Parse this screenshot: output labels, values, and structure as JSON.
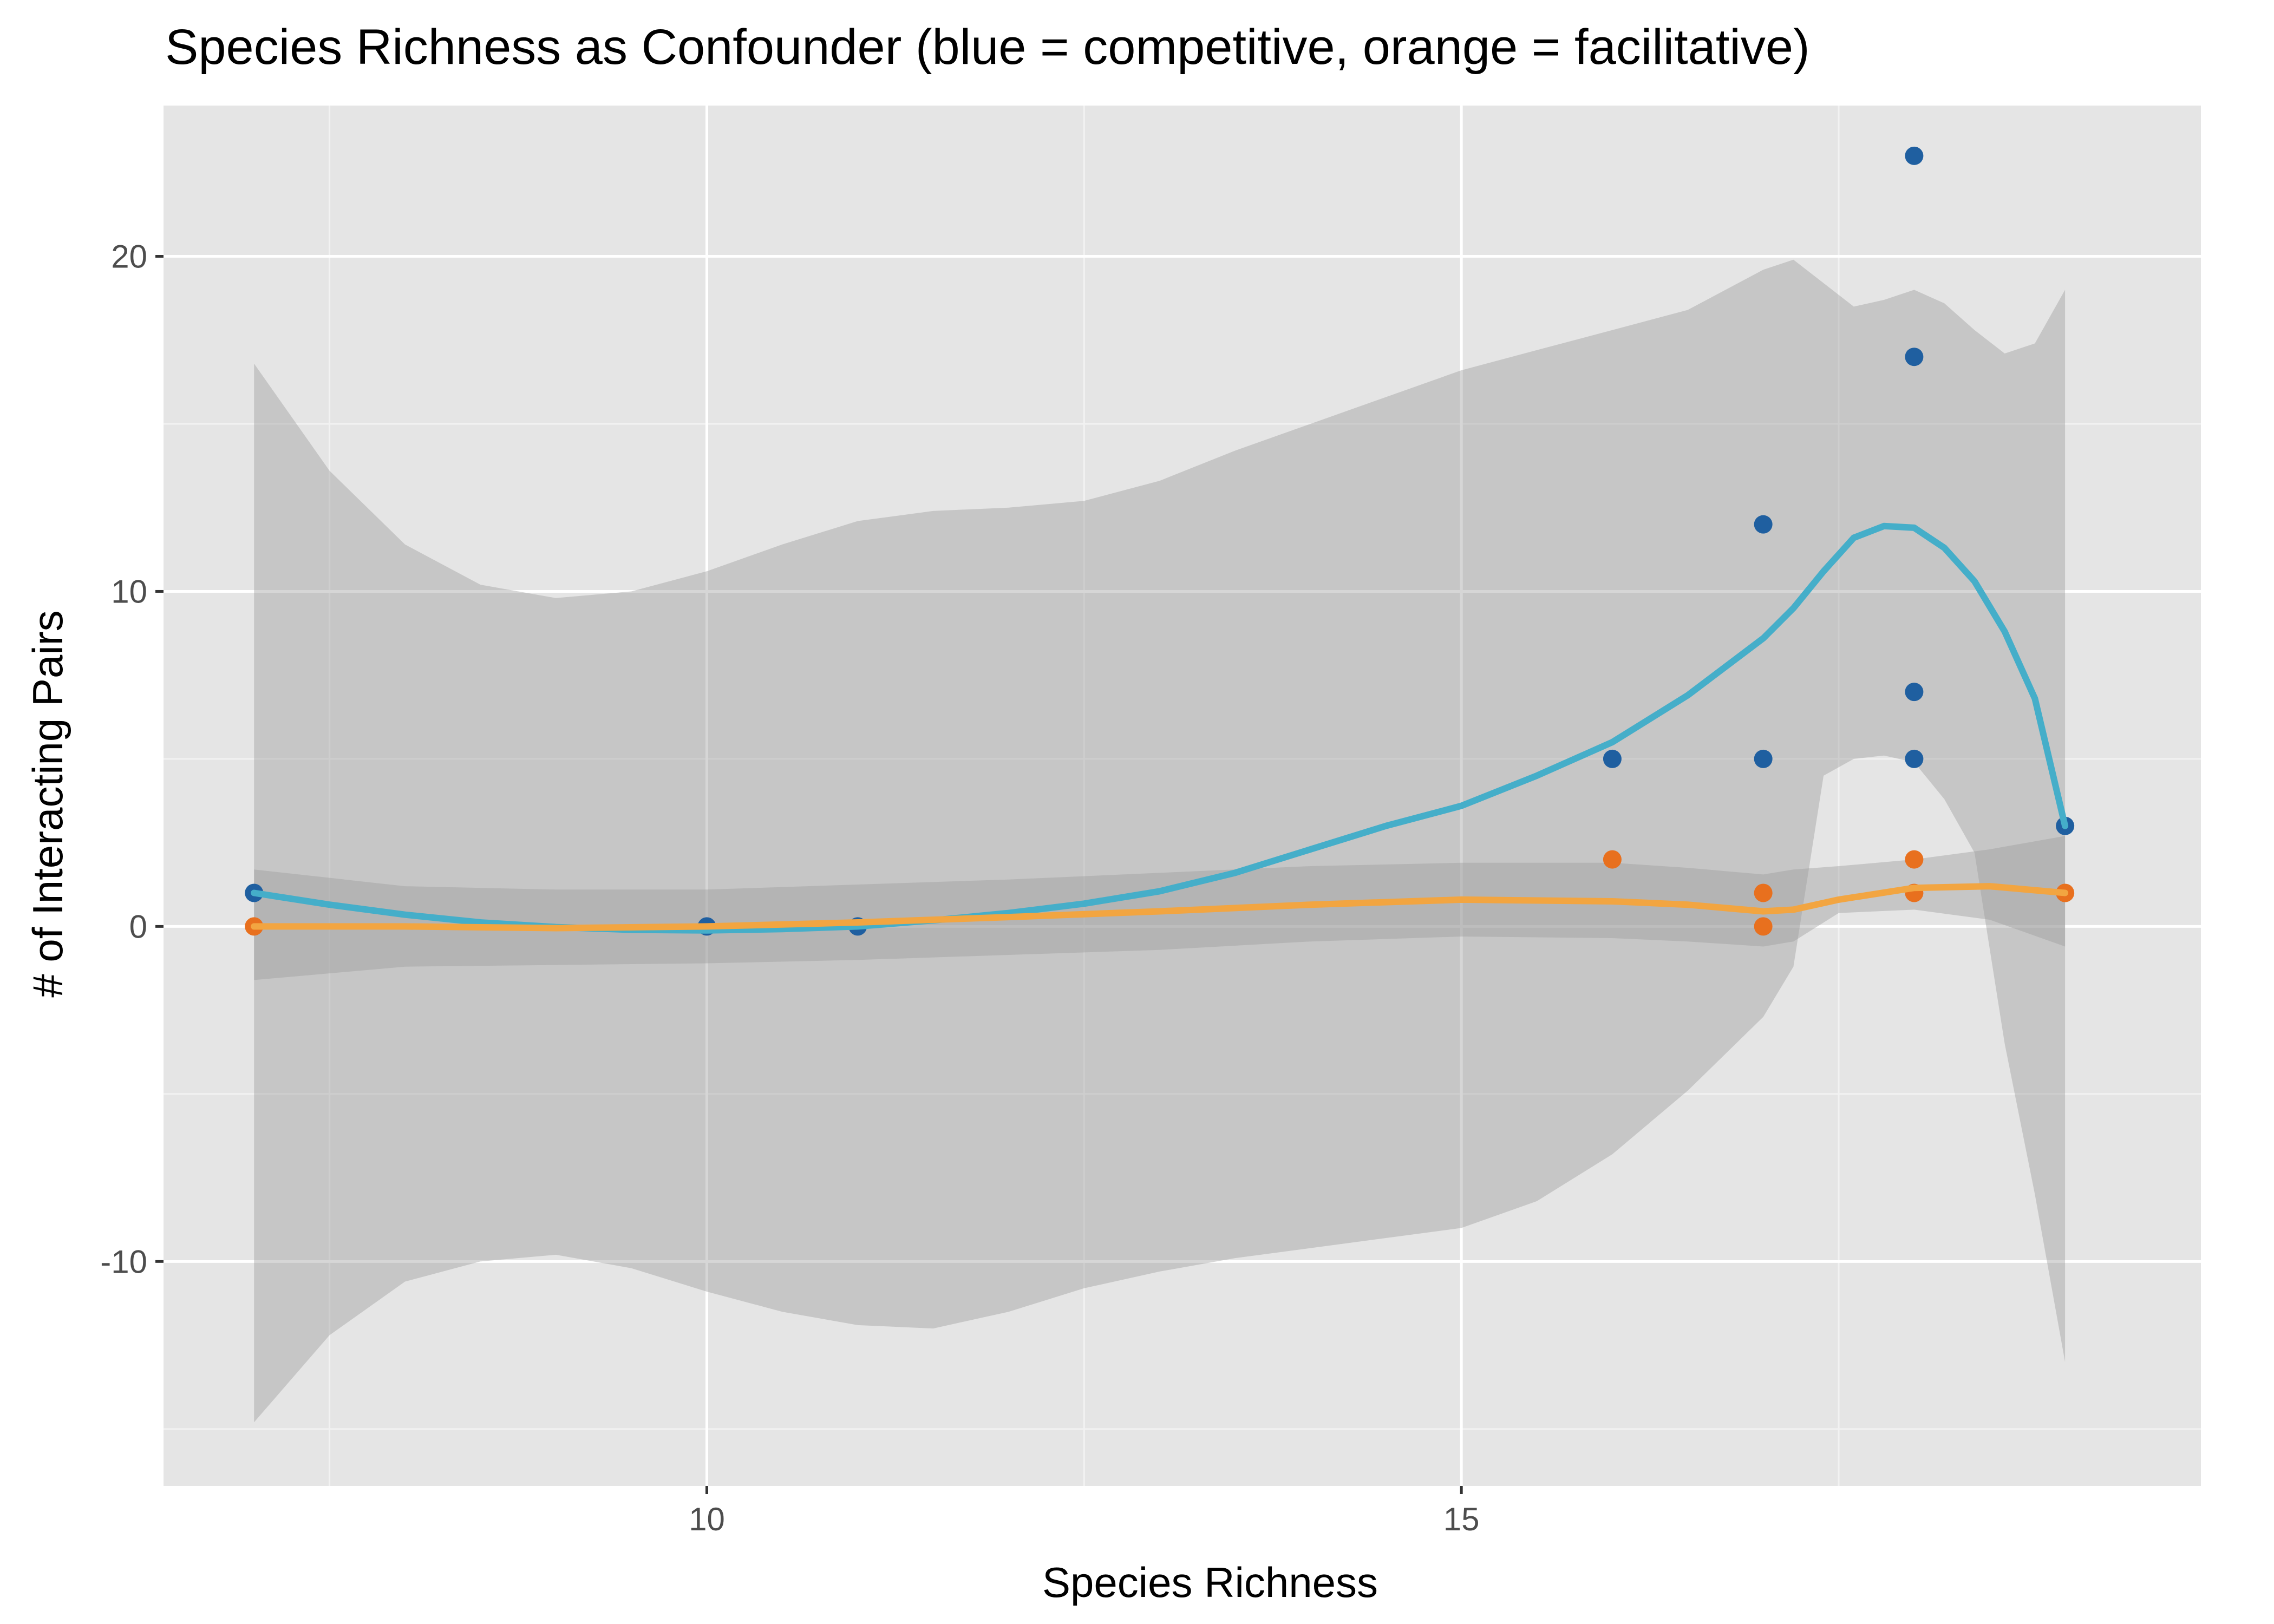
{
  "chart_data": {
    "type": "scatter",
    "title": "Species Richness as Confounder (blue = competitive, orange = facilitative)",
    "xlabel": "Species Richness",
    "ylabel": "# of Interacting Pairs",
    "xlim": [
      6.4,
      19.9
    ],
    "ylim": [
      -16.7,
      24.5
    ],
    "x_major_ticks": [
      10,
      15
    ],
    "x_minor_ticks": [
      7.5,
      12.5,
      17.5
    ],
    "y_major_ticks": [
      -10,
      0,
      10,
      20
    ],
    "y_minor_ticks": [
      -15,
      -5,
      5,
      15
    ],
    "x_tick_labels": [
      "10",
      "15"
    ],
    "y_tick_labels": [
      "-10",
      "0",
      "10",
      "20"
    ],
    "grid": true,
    "panel_background": "#e5e5e5",
    "series": [
      {
        "color": "#1f5fa0",
        "points": [
          {
            "x": 7,
            "y": 1
          },
          {
            "x": 10,
            "y": 0
          },
          {
            "x": 11,
            "y": 0
          },
          {
            "x": 16,
            "y": 5
          },
          {
            "x": 17,
            "y": 12
          },
          {
            "x": 17,
            "y": 5
          },
          {
            "x": 18,
            "y": 23
          },
          {
            "x": 18,
            "y": 17
          },
          {
            "x": 18,
            "y": 7
          },
          {
            "x": 18,
            "y": 5
          },
          {
            "x": 19,
            "y": 3
          }
        ],
        "smooth_color": "#45aec9",
        "smooth": [
          [
            7,
            1
          ],
          [
            7.5,
            0.65
          ],
          [
            8,
            0.35
          ],
          [
            8.5,
            0.12
          ],
          [
            9,
            -0.02
          ],
          [
            9.5,
            -0.1
          ],
          [
            10,
            -0.12
          ],
          [
            10.5,
            -0.08
          ],
          [
            11,
            0
          ],
          [
            11.5,
            0.18
          ],
          [
            12,
            0.4
          ],
          [
            12.5,
            0.68
          ],
          [
            13,
            1.05
          ],
          [
            13.5,
            1.6
          ],
          [
            14,
            2.3
          ],
          [
            14.5,
            3.0
          ],
          [
            15,
            3.6
          ],
          [
            15.5,
            4.5
          ],
          [
            16,
            5.5
          ],
          [
            16.5,
            6.9
          ],
          [
            17,
            8.6
          ],
          [
            17.2,
            9.5
          ],
          [
            17.4,
            10.6
          ],
          [
            17.6,
            11.6
          ],
          [
            17.8,
            11.95
          ],
          [
            18,
            11.9
          ],
          [
            18.2,
            11.3
          ],
          [
            18.4,
            10.3
          ],
          [
            18.6,
            8.8
          ],
          [
            18.8,
            6.8
          ],
          [
            19,
            3
          ]
        ],
        "band_upper": [
          [
            7,
            16.8
          ],
          [
            7.5,
            13.6
          ],
          [
            8,
            11.4
          ],
          [
            8.5,
            10.2
          ],
          [
            9,
            9.8
          ],
          [
            9.5,
            10.0
          ],
          [
            10,
            10.6
          ],
          [
            10.5,
            11.4
          ],
          [
            11,
            12.1
          ],
          [
            11.5,
            12.4
          ],
          [
            12,
            12.5
          ],
          [
            12.5,
            12.7
          ],
          [
            13,
            13.3
          ],
          [
            13.5,
            14.2
          ],
          [
            14,
            15.0
          ],
          [
            14.5,
            15.8
          ],
          [
            15,
            16.6
          ],
          [
            15.5,
            17.2
          ],
          [
            16,
            17.8
          ],
          [
            16.5,
            18.4
          ],
          [
            17,
            19.6
          ],
          [
            17.2,
            19.9
          ],
          [
            17.4,
            19.2
          ],
          [
            17.6,
            18.5
          ],
          [
            17.8,
            18.7
          ],
          [
            18,
            19.0
          ],
          [
            18.2,
            18.6
          ],
          [
            18.4,
            17.8
          ],
          [
            18.6,
            17.1
          ],
          [
            18.8,
            17.4
          ],
          [
            19,
            19.0
          ]
        ],
        "band_lower": [
          [
            7,
            -14.8
          ],
          [
            7.5,
            -12.2
          ],
          [
            8,
            -10.6
          ],
          [
            8.5,
            -10.0
          ],
          [
            9,
            -9.8
          ],
          [
            9.5,
            -10.2
          ],
          [
            10,
            -10.9
          ],
          [
            10.5,
            -11.5
          ],
          [
            11,
            -11.9
          ],
          [
            11.5,
            -12.0
          ],
          [
            12,
            -11.5
          ],
          [
            12.5,
            -10.8
          ],
          [
            13,
            -10.3
          ],
          [
            13.5,
            -9.9
          ],
          [
            14,
            -9.6
          ],
          [
            14.5,
            -9.3
          ],
          [
            15,
            -9.0
          ],
          [
            15.5,
            -8.2
          ],
          [
            16,
            -6.8
          ],
          [
            16.5,
            -4.9
          ],
          [
            17,
            -2.7
          ],
          [
            17.2,
            -1.2
          ],
          [
            17.4,
            4.5
          ],
          [
            17.6,
            5.0
          ],
          [
            17.8,
            5.1
          ],
          [
            18,
            4.9
          ],
          [
            18.2,
            3.8
          ],
          [
            18.4,
            2.2
          ],
          [
            18.6,
            -3.5
          ],
          [
            18.8,
            -8.0
          ],
          [
            19,
            -13.0
          ]
        ]
      },
      {
        "color": "#e8701e",
        "points": [
          {
            "x": 7,
            "y": 0
          },
          {
            "x": 16,
            "y": 2
          },
          {
            "x": 17,
            "y": 1
          },
          {
            "x": 17,
            "y": 0
          },
          {
            "x": 18,
            "y": 2
          },
          {
            "x": 18,
            "y": 1
          },
          {
            "x": 19,
            "y": 1
          }
        ],
        "smooth_color": "#f2a541",
        "smooth": [
          [
            7,
            0
          ],
          [
            8,
            0
          ],
          [
            9,
            -0.05
          ],
          [
            10,
            0
          ],
          [
            11,
            0.12
          ],
          [
            12,
            0.28
          ],
          [
            13,
            0.45
          ],
          [
            14,
            0.65
          ],
          [
            15,
            0.8
          ],
          [
            16,
            0.75
          ],
          [
            16.5,
            0.65
          ],
          [
            17,
            0.45
          ],
          [
            17.2,
            0.5
          ],
          [
            17.5,
            0.8
          ],
          [
            18,
            1.15
          ],
          [
            18.5,
            1.2
          ],
          [
            19,
            1
          ]
        ],
        "band_upper": [
          [
            7,
            1.7
          ],
          [
            8,
            1.2
          ],
          [
            9,
            1.1
          ],
          [
            10,
            1.1
          ],
          [
            11,
            1.25
          ],
          [
            12,
            1.4
          ],
          [
            13,
            1.6
          ],
          [
            14,
            1.8
          ],
          [
            15,
            1.9
          ],
          [
            16,
            1.9
          ],
          [
            16.5,
            1.75
          ],
          [
            17,
            1.55
          ],
          [
            17.2,
            1.7
          ],
          [
            17.5,
            1.8
          ],
          [
            18,
            2.0
          ],
          [
            18.5,
            2.3
          ],
          [
            19,
            2.7
          ]
        ],
        "band_lower": [
          [
            7,
            -1.6
          ],
          [
            8,
            -1.2
          ],
          [
            9,
            -1.15
          ],
          [
            10,
            -1.1
          ],
          [
            11,
            -1.0
          ],
          [
            12,
            -0.85
          ],
          [
            13,
            -0.7
          ],
          [
            14,
            -0.45
          ],
          [
            15,
            -0.3
          ],
          [
            16,
            -0.35
          ],
          [
            16.5,
            -0.45
          ],
          [
            17,
            -0.6
          ],
          [
            17.2,
            -0.45
          ],
          [
            17.5,
            0.4
          ],
          [
            18,
            0.5
          ],
          [
            18.5,
            0.2
          ],
          [
            19,
            -0.6
          ]
        ]
      }
    ]
  }
}
